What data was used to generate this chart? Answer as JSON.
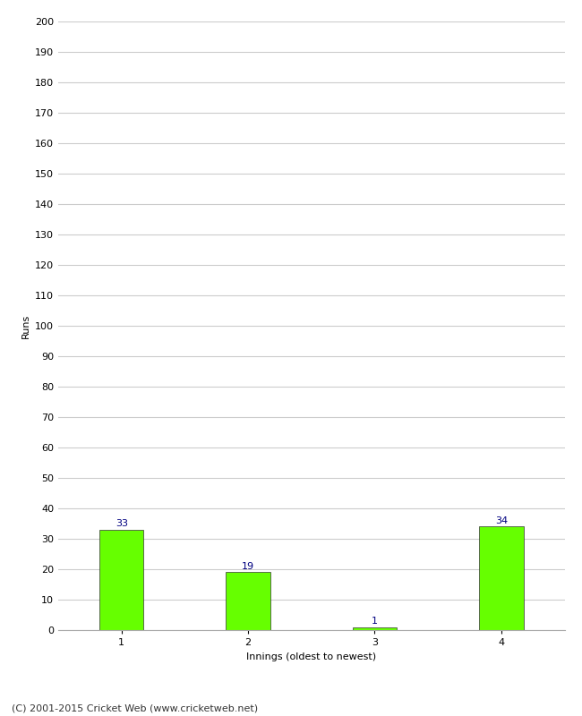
{
  "xlabel": "Innings (oldest to newest)",
  "ylabel": "Runs",
  "categories": [
    "1",
    "2",
    "3",
    "4"
  ],
  "values": [
    33,
    19,
    1,
    34
  ],
  "bar_color": "#66ff00",
  "bar_edge_color": "#333333",
  "label_color": "#000080",
  "ylim": [
    0,
    200
  ],
  "yticks": [
    0,
    10,
    20,
    30,
    40,
    50,
    60,
    70,
    80,
    90,
    100,
    110,
    120,
    130,
    140,
    150,
    160,
    170,
    180,
    190,
    200
  ],
  "grid_color": "#cccccc",
  "background_color": "#ffffff",
  "footer_text": "(C) 2001-2015 Cricket Web (www.cricketweb.net)",
  "label_fontsize": 8,
  "axis_fontsize": 8,
  "footer_fontsize": 8,
  "bar_width": 0.35
}
